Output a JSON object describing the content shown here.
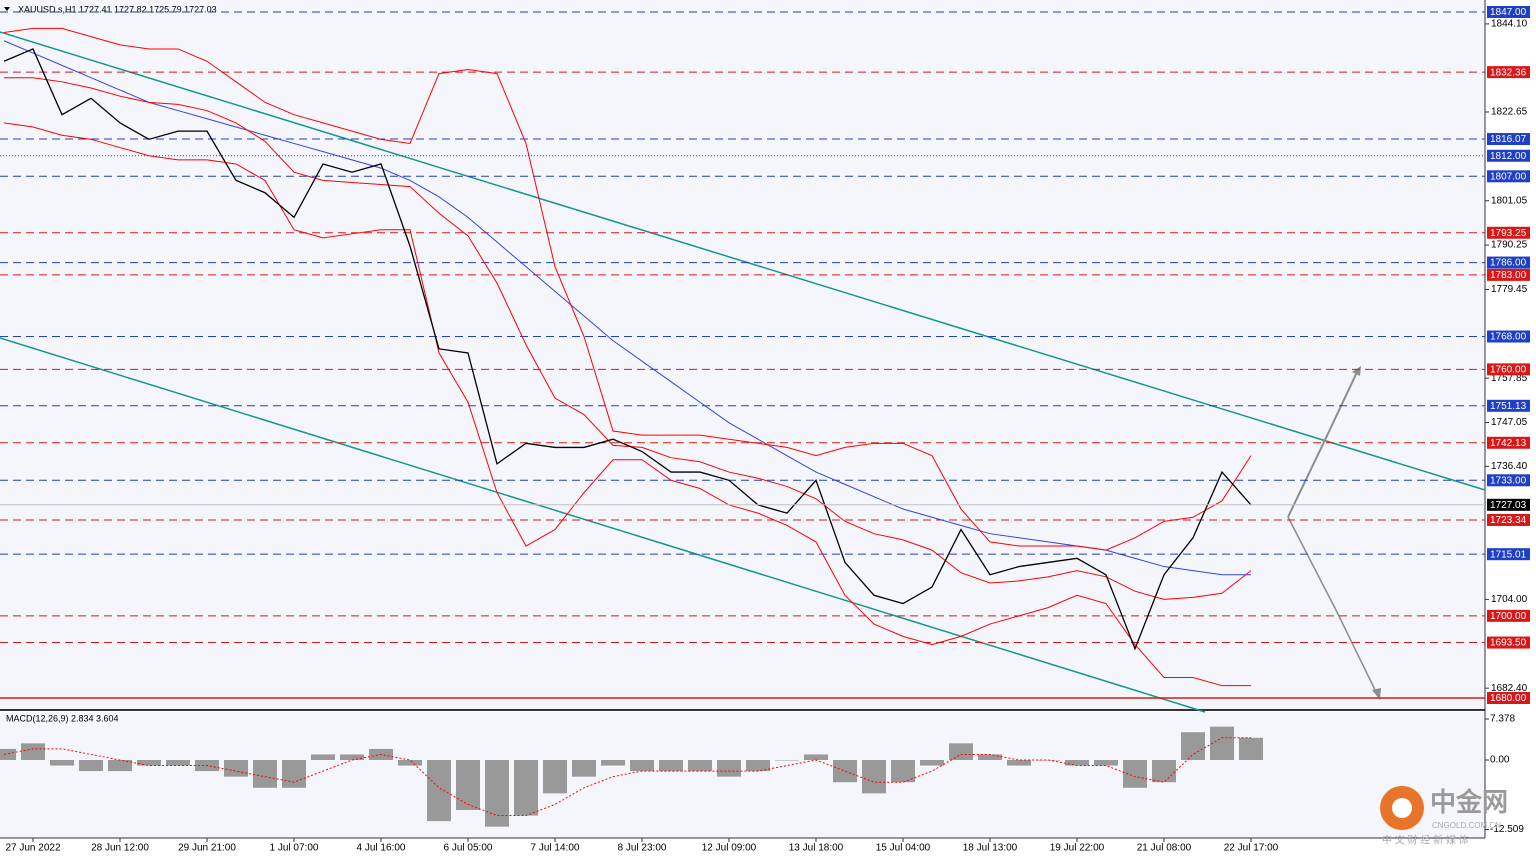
{
  "chart_data": {
    "type": "line",
    "title": "XAUUSD.s,H1  1727.41 1727.82 1725.79 1727.03",
    "categories": [
      null,
      "27 Jun 2022",
      null,
      null,
      "28 Jun 12:00",
      null,
      null,
      "29 Jun 21:00",
      null,
      null,
      "1 Jul 07:00",
      null,
      null,
      "4 Jul 16:00",
      null,
      null,
      "6 Jul 05:00",
      null,
      null,
      "7 Jul 14:00",
      null,
      null,
      "8 Jul 23:00",
      null,
      null,
      "12 Jul 09:00",
      null,
      null,
      "13 Jul 18:00",
      null,
      null,
      "15 Jul 04:00",
      null,
      null,
      "18 Jul 13:00",
      null,
      null,
      "19 Jul 22:00",
      null,
      null,
      "21 Jul 08:00",
      null,
      null,
      "22 Jul 17:00"
    ],
    "series": [
      {
        "color": "#000000",
        "values": [
          1835,
          1838,
          1822,
          1826,
          1820,
          1816,
          1818,
          1818,
          1806,
          1803,
          1797,
          1810,
          1808,
          1810,
          1790,
          1765,
          1764,
          1737,
          1742,
          1741,
          1741,
          1743,
          1740,
          1735,
          1735,
          1733,
          1727,
          1725,
          1733,
          1713,
          1705,
          1703,
          1707,
          1721,
          1710,
          1712,
          1713,
          1714,
          1710,
          1692,
          1710,
          1719,
          1735,
          1727
        ]
      },
      {
        "color": "#ff0000",
        "values": [
          1842,
          1843,
          1843,
          1841,
          1839,
          1838,
          1838,
          1835,
          1830,
          1825,
          1822,
          1820,
          1818,
          1816,
          1815,
          1832,
          1833,
          1832,
          1815,
          1785,
          1768,
          1745,
          1744,
          1744,
          1744,
          1743,
          1742,
          1741,
          1739,
          1741,
          1742,
          1742,
          1739,
          1726,
          1718,
          1717,
          1717,
          1717,
          1716,
          1719,
          1723,
          1724,
          1728,
          1739
        ]
      },
      {
        "color": "#ff0000",
        "values": [
          1831,
          1831,
          1830,
          1828.5,
          1826.5,
          1825,
          1824.5,
          1823,
          1820,
          1815.5,
          1808,
          1806,
          1805.5,
          1805,
          1804.5,
          1798,
          1792.5,
          1781,
          1766,
          1753,
          1749,
          1741.5,
          1741,
          1738.5,
          1737.5,
          1735,
          1733.5,
          1731.5,
          1728.5,
          1723,
          1720,
          1718.5,
          1716,
          1710.5,
          1708,
          1708.5,
          1709.5,
          1711,
          1709.5,
          1706,
          1704,
          1704.5,
          1705.5,
          1711
        ]
      },
      {
        "color": "#ff0000",
        "values": [
          1820,
          1819,
          1817,
          1816,
          1814,
          1812,
          1811,
          1811,
          1810,
          1806,
          1794,
          1792,
          1793,
          1794,
          1794,
          1764,
          1752,
          1730,
          1717,
          1721,
          1730,
          1738,
          1738,
          1733,
          1731,
          1727,
          1725,
          1722,
          1718,
          1705,
          1698,
          1695,
          1693,
          1695,
          1698,
          1700,
          1702,
          1705,
          1703,
          1693,
          1685,
          1685,
          1683,
          1683
        ]
      },
      {
        "color": "#3344dd",
        "values": [
          1840,
          1837,
          1834,
          1831,
          1828,
          1825,
          1823,
          1821,
          1819,
          1817,
          1815,
          1813,
          1811,
          1809,
          1806,
          1802,
          1797,
          1791,
          1785,
          1779,
          1773,
          1767,
          1762,
          1757,
          1752,
          1747,
          1743,
          1739,
          1735,
          1732,
          1729,
          1726,
          1724,
          1722,
          1720,
          1719,
          1718,
          1717,
          1716,
          1714,
          1712,
          1711,
          1710,
          1710
        ]
      }
    ],
    "ylim": [
      1677.08,
      1849.43
    ],
    "yticks": [
      {
        "value": 1844.1,
        "label": "1844.10"
      },
      {
        "value": 1822.65,
        "label": "1822.65"
      },
      {
        "value": 1801.05,
        "label": "1801.05"
      },
      {
        "value": 1790.25,
        "label": "1790.25"
      },
      {
        "value": 1779.45,
        "label": "1779.45"
      },
      {
        "value": 1757.85,
        "label": "1757.85"
      },
      {
        "value": 1747.05,
        "label": "1747.05"
      },
      {
        "value": 1736.4,
        "label": "1736.40"
      },
      {
        "value": 1704,
        "label": "1704.00"
      },
      {
        "value": 1682.4,
        "label": "1682.40"
      }
    ],
    "levels": [
      {
        "value": 1847,
        "label": "1847.00",
        "color": "#1f3fc4",
        "style": "dashed"
      },
      {
        "value": 1832.36,
        "label": "1832.36",
        "color": "#d81818",
        "style": "dashed"
      },
      {
        "value": 1816.07,
        "label": "1816.07",
        "color": "#1f3fc4",
        "style": "dashed"
      },
      {
        "value": 1812,
        "label": "1812.00",
        "color": "#1f3fc4",
        "style": "dotted"
      },
      {
        "value": 1807,
        "label": "1807.00",
        "color": "#1f3fc4",
        "style": "dashed"
      },
      {
        "value": 1793.25,
        "label": "1793.25",
        "color": "#d81818",
        "style": "dashed"
      },
      {
        "value": 1786,
        "label": "1786.00",
        "color": "#1f3fc4",
        "style": "dashed"
      },
      {
        "value": 1783,
        "label": "1783.00",
        "color": "#d81818",
        "style": "dashed"
      },
      {
        "value": 1768,
        "label": "1768.00",
        "color": "#1f3fc4",
        "style": "dashed"
      },
      {
        "value": 1760,
        "label": "1760.00",
        "color": "#d81818",
        "style": "dashed"
      },
      {
        "value": 1751.13,
        "label": "1751.13",
        "color": "#1f3fc4",
        "style": "dashed"
      },
      {
        "value": 1742.13,
        "label": "1742.13",
        "color": "#d81818",
        "style": "dashed"
      },
      {
        "value": 1733,
        "label": "1733.00",
        "color": "#1f3fc4",
        "style": "dashed"
      },
      {
        "value": 1723.34,
        "label": "1723.34",
        "color": "#d81818",
        "style": "dashed"
      },
      {
        "value": 1715.01,
        "label": "1715.01",
        "color": "#1f3fc4",
        "style": "dashed"
      },
      {
        "value": 1700,
        "label": "1700.00",
        "color": "#d81818",
        "style": "dashed"
      },
      {
        "value": 1693.5,
        "label": "1693.50",
        "color": "#d81818",
        "style": "dashed"
      },
      {
        "value": 1680,
        "label": "1680.00",
        "color": "#d81818",
        "style": "solid"
      }
    ],
    "current_price": {
      "value": 1727.03,
      "label": "1727.03",
      "color": "#000000"
    },
    "macd": {
      "title": "MACD(12,26,9) 2.834 3.604",
      "ylim": [
        -14.04,
        8.64
      ],
      "yticks": [
        7.378,
        {
          "value": 0,
          "label": "0.00"
        },
        -12.509
      ],
      "histogram": {
        "color": "#999999",
        "values": [
          2,
          3,
          -1,
          -2,
          -2,
          -1,
          -1,
          -2,
          -3,
          -5,
          -5,
          1,
          1,
          2,
          -1,
          -11,
          -9,
          -12,
          -10,
          -6,
          -3,
          -1,
          -2,
          -2,
          -2,
          -3,
          -2,
          0,
          1,
          -4,
          -6,
          -4,
          -1,
          3,
          1,
          -1,
          0,
          -1,
          -1,
          -5,
          -4,
          5,
          6,
          4
        ]
      },
      "signal": {
        "color": "#ff0000",
        "values": [
          1,
          2,
          2,
          1,
          0,
          -1,
          -1,
          -1,
          -2,
          -3,
          -4,
          -2,
          0,
          1,
          0,
          -5,
          -8,
          -10,
          -10,
          -8,
          -5,
          -3,
          -2,
          -2,
          -2,
          -2,
          -2,
          -1,
          0,
          -2,
          -4,
          -4,
          -2,
          1,
          1,
          0,
          0,
          -1,
          -1,
          -3,
          -4,
          1,
          4,
          4
        ]
      }
    }
  },
  "watermark": {
    "brand": "中金网",
    "site": "CNGOLD.COM.CN",
    "slogan": "中 文 财 经 新 媒 体"
  }
}
